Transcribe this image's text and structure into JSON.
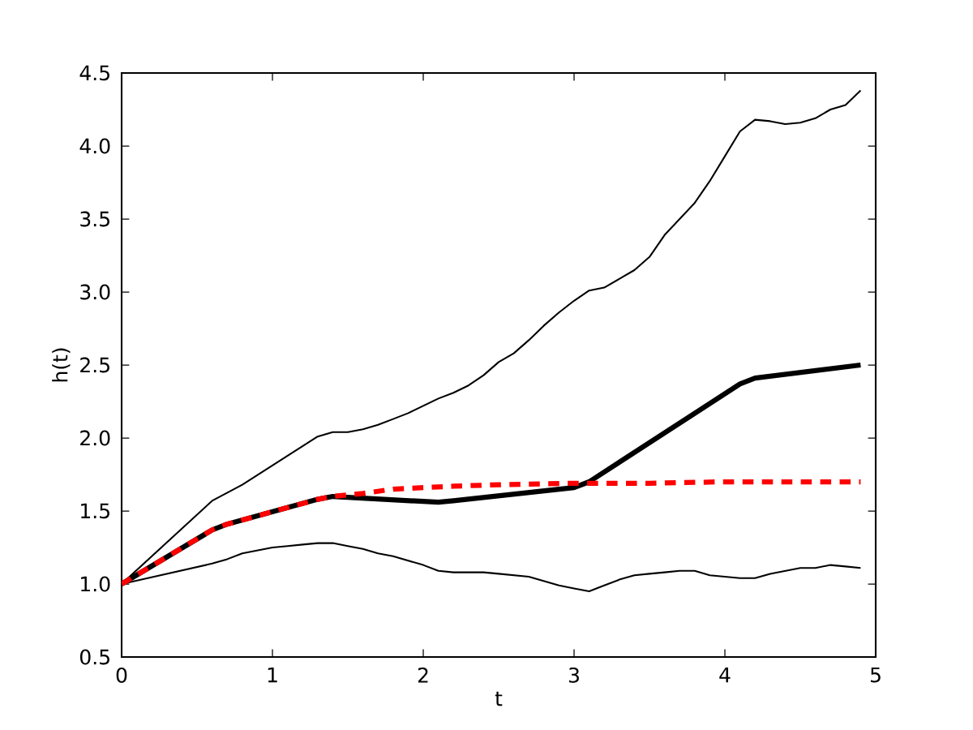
{
  "chart_data": {
    "type": "line",
    "xlabel": "t",
    "ylabel": "h(t)",
    "xlim": [
      0,
      5
    ],
    "xticks": [
      0,
      1,
      2,
      3,
      4,
      5
    ],
    "ylim": [
      0.5,
      4.5
    ],
    "yticks": [
      0.5,
      {
        "value": 1.0,
        "label": "1.0"
      },
      1.5,
      {
        "value": 2.0,
        "label": "2.0"
      },
      2.5,
      {
        "value": 3.0,
        "label": "3.0"
      },
      3.5,
      {
        "value": 4.0,
        "label": "4.0"
      },
      4.5
    ],
    "series": [
      {
        "color": "#000000",
        "x": [
          0,
          0.6,
          0.8,
          1.3,
          1.4,
          1.5,
          1.6,
          1.7,
          1.8,
          1.9,
          2.0,
          2.1,
          2.2,
          2.3,
          2.4,
          2.5,
          2.6,
          2.7,
          2.8,
          2.9,
          3.0,
          3.1,
          3.2,
          3.3,
          3.4,
          3.5,
          3.6,
          3.7,
          3.8,
          3.9,
          4.0,
          4.1,
          4.2,
          4.3,
          4.4,
          4.5,
          4.6,
          4.7,
          4.8,
          4.9
        ],
        "values": [
          1.0,
          1.57,
          1.68,
          2.01,
          2.04,
          2.04,
          2.06,
          2.09,
          2.13,
          2.17,
          2.22,
          2.27,
          2.31,
          2.36,
          2.43,
          2.52,
          2.58,
          2.67,
          2.77,
          2.86,
          2.94,
          3.01,
          3.03,
          3.09,
          3.15,
          3.24,
          3.39,
          3.5,
          3.61,
          3.76,
          3.93,
          4.1,
          4.18,
          4.17,
          4.15,
          4.16,
          4.19,
          4.25,
          4.28,
          4.38
        ]
      },
      {
        "color": "#000000",
        "x": [
          0,
          0.6,
          0.7,
          0.8,
          0.9,
          1.0,
          1.1,
          1.2,
          1.3,
          1.4,
          1.5,
          1.6,
          1.7,
          1.8,
          1.9,
          2.0,
          2.1,
          2.2,
          2.3,
          2.4,
          2.5,
          2.6,
          2.7,
          2.8,
          2.9,
          3.0,
          3.1,
          3.2,
          3.3,
          3.4,
          3.5,
          3.6,
          3.7,
          3.8,
          3.9,
          4.0,
          4.1,
          4.2,
          4.3,
          4.4,
          4.5,
          4.6,
          4.7,
          4.8,
          4.9
        ],
        "values": [
          1.0,
          1.14,
          1.17,
          1.21,
          1.23,
          1.25,
          1.26,
          1.27,
          1.28,
          1.28,
          1.26,
          1.24,
          1.21,
          1.19,
          1.16,
          1.13,
          1.09,
          1.08,
          1.08,
          1.08,
          1.07,
          1.06,
          1.05,
          1.02,
          0.99,
          0.97,
          0.95,
          0.99,
          1.03,
          1.06,
          1.07,
          1.08,
          1.09,
          1.09,
          1.06,
          1.05,
          1.04,
          1.04,
          1.07,
          1.09,
          1.11,
          1.11,
          1.13,
          1.12,
          1.11
        ]
      },
      {
        "color": "#000000",
        "x": [
          0,
          0.6,
          0.7,
          1.3,
          1.4,
          2.1,
          2.2,
          3.0,
          3.1,
          4.1,
          4.2,
          4.9
        ],
        "values": [
          1.0,
          1.37,
          1.41,
          1.58,
          1.6,
          1.56,
          1.57,
          1.66,
          1.7,
          2.37,
          2.41,
          2.5
        ]
      },
      {
        "color": "#ff0000",
        "line_style": "dashed",
        "x": [
          0,
          0.6,
          0.7,
          1.3,
          1.4,
          1.6,
          1.8,
          2.0,
          2.2,
          2.5,
          3.0,
          3.5,
          4.0,
          4.9
        ],
        "values": [
          1.0,
          1.37,
          1.41,
          1.58,
          1.6,
          1.62,
          1.65,
          1.66,
          1.67,
          1.68,
          1.69,
          1.69,
          1.7,
          1.7
        ]
      }
    ]
  }
}
